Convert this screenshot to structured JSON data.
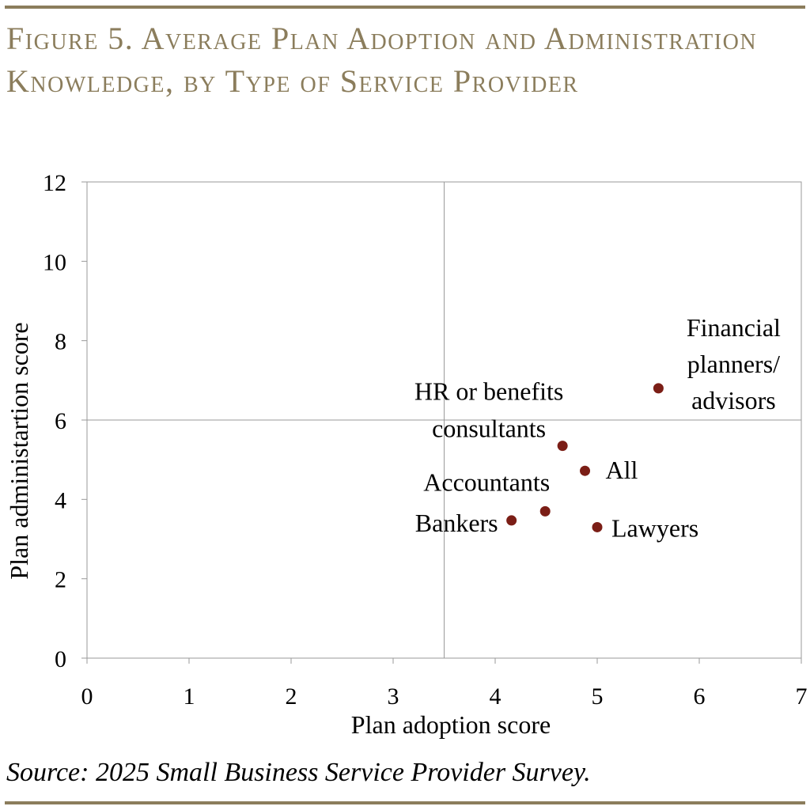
{
  "figure": {
    "title": "Figure 5. Average Plan Adoption and Administration Knowledge, by Type of Service Provider",
    "source": "Source: 2025 Small Business Service Provider Survey."
  },
  "colors": {
    "accent": "#8b7d5c",
    "point": "#7b1e16",
    "grid": "#9a9a9a"
  },
  "chart_data": {
    "type": "scatter",
    "title": "Figure 5. Average Plan Adoption and Administration Knowledge, by Type of Service Provider",
    "xlabel": "Plan adoption score",
    "ylabel": "Plan administartion score",
    "xlim": [
      0,
      7
    ],
    "ylim": [
      0,
      12
    ],
    "xticks": [
      0,
      1,
      2,
      3,
      4,
      5,
      6,
      7
    ],
    "yticks": [
      0,
      2,
      4,
      6,
      8,
      10,
      12
    ],
    "reference_lines": {
      "x": 3.5,
      "y": 6
    },
    "grid": false,
    "legend": "none",
    "points": [
      {
        "label": "Financial planners/ advisors",
        "label_lines": [
          "Financial",
          "planners/",
          "advisors"
        ],
        "x": 5.6,
        "y": 6.8
      },
      {
        "label": "HR or benefits consultants",
        "label_lines": [
          "HR or benefits",
          "consultants"
        ],
        "x": 4.66,
        "y": 5.35
      },
      {
        "label": "All",
        "label_lines": [
          "All"
        ],
        "x": 4.88,
        "y": 4.72
      },
      {
        "label": "Accountants",
        "label_lines": [
          "Accountants"
        ],
        "x": 4.49,
        "y": 3.7
      },
      {
        "label": "Bankers",
        "label_lines": [
          "Bankers"
        ],
        "x": 4.16,
        "y": 3.47
      },
      {
        "label": "Lawyers",
        "label_lines": [
          "Lawyers"
        ],
        "x": 5.0,
        "y": 3.3
      }
    ]
  }
}
